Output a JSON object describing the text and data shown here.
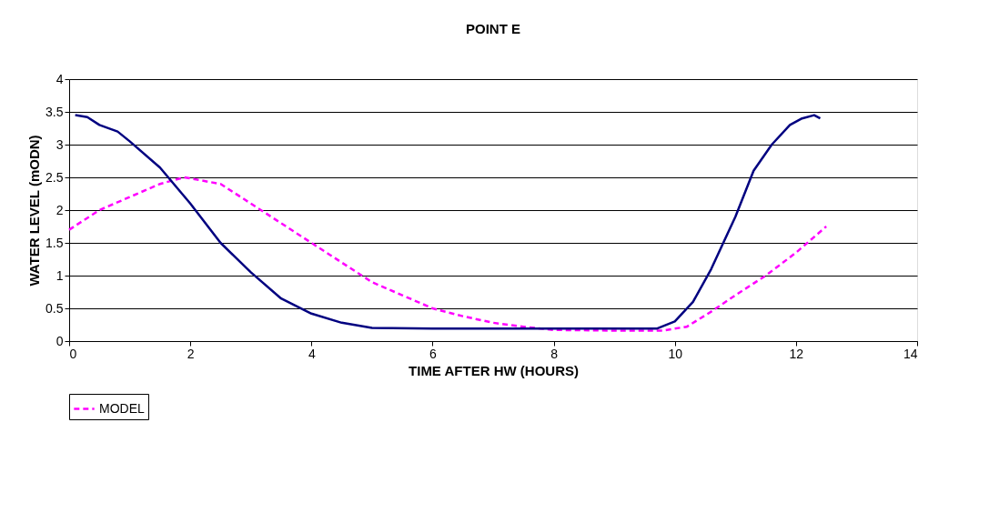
{
  "chart_data": {
    "type": "line",
    "title": "POINT E",
    "xlabel": "TIME AFTER HW (HOURS)",
    "ylabel": "WATER LEVEL (mODN)",
    "xlim": [
      0,
      14
    ],
    "xticks": [
      0,
      2,
      4,
      6,
      8,
      10,
      12,
      14
    ],
    "ylim": [
      0,
      4
    ],
    "yticks": [
      0,
      0.5,
      1,
      1.5,
      2,
      2.5,
      3,
      3.5,
      4
    ],
    "grid": "y",
    "legend": "bottom",
    "marker": "none",
    "series": [
      {
        "name": "MODEL",
        "color": "#ff00ff",
        "line_style": "dashed",
        "x": [
          0,
          0.5,
          1,
          1.5,
          1.9,
          2.5,
          3,
          3.5,
          4,
          4.5,
          5,
          5.5,
          6,
          6.5,
          7,
          7.5,
          8,
          9,
          9.8,
          10.2,
          10.6,
          11,
          11.5,
          12,
          12.5
        ],
        "values": [
          1.7,
          2.0,
          2.2,
          2.4,
          2.5,
          2.4,
          2.1,
          1.8,
          1.5,
          1.2,
          0.9,
          0.7,
          0.5,
          0.38,
          0.28,
          0.22,
          0.17,
          0.16,
          0.16,
          0.22,
          0.45,
          0.7,
          1.0,
          1.35,
          1.75
        ]
      },
      {
        "color": "#000080",
        "line_style": "solid",
        "x": [
          0.1,
          0.3,
          0.5,
          0.8,
          1,
          1.5,
          2,
          2.5,
          3,
          3.5,
          4,
          4.5,
          5,
          6,
          8,
          9.7,
          10,
          10.3,
          10.6,
          11,
          11.3,
          11.6,
          11.9,
          12.1,
          12.3,
          12.4
        ],
        "values": [
          3.45,
          3.42,
          3.3,
          3.2,
          3.05,
          2.65,
          2.1,
          1.5,
          1.05,
          0.65,
          0.42,
          0.28,
          0.2,
          0.19,
          0.19,
          0.19,
          0.3,
          0.6,
          1.1,
          1.9,
          2.6,
          3.0,
          3.3,
          3.4,
          3.45,
          3.4
        ]
      }
    ]
  }
}
